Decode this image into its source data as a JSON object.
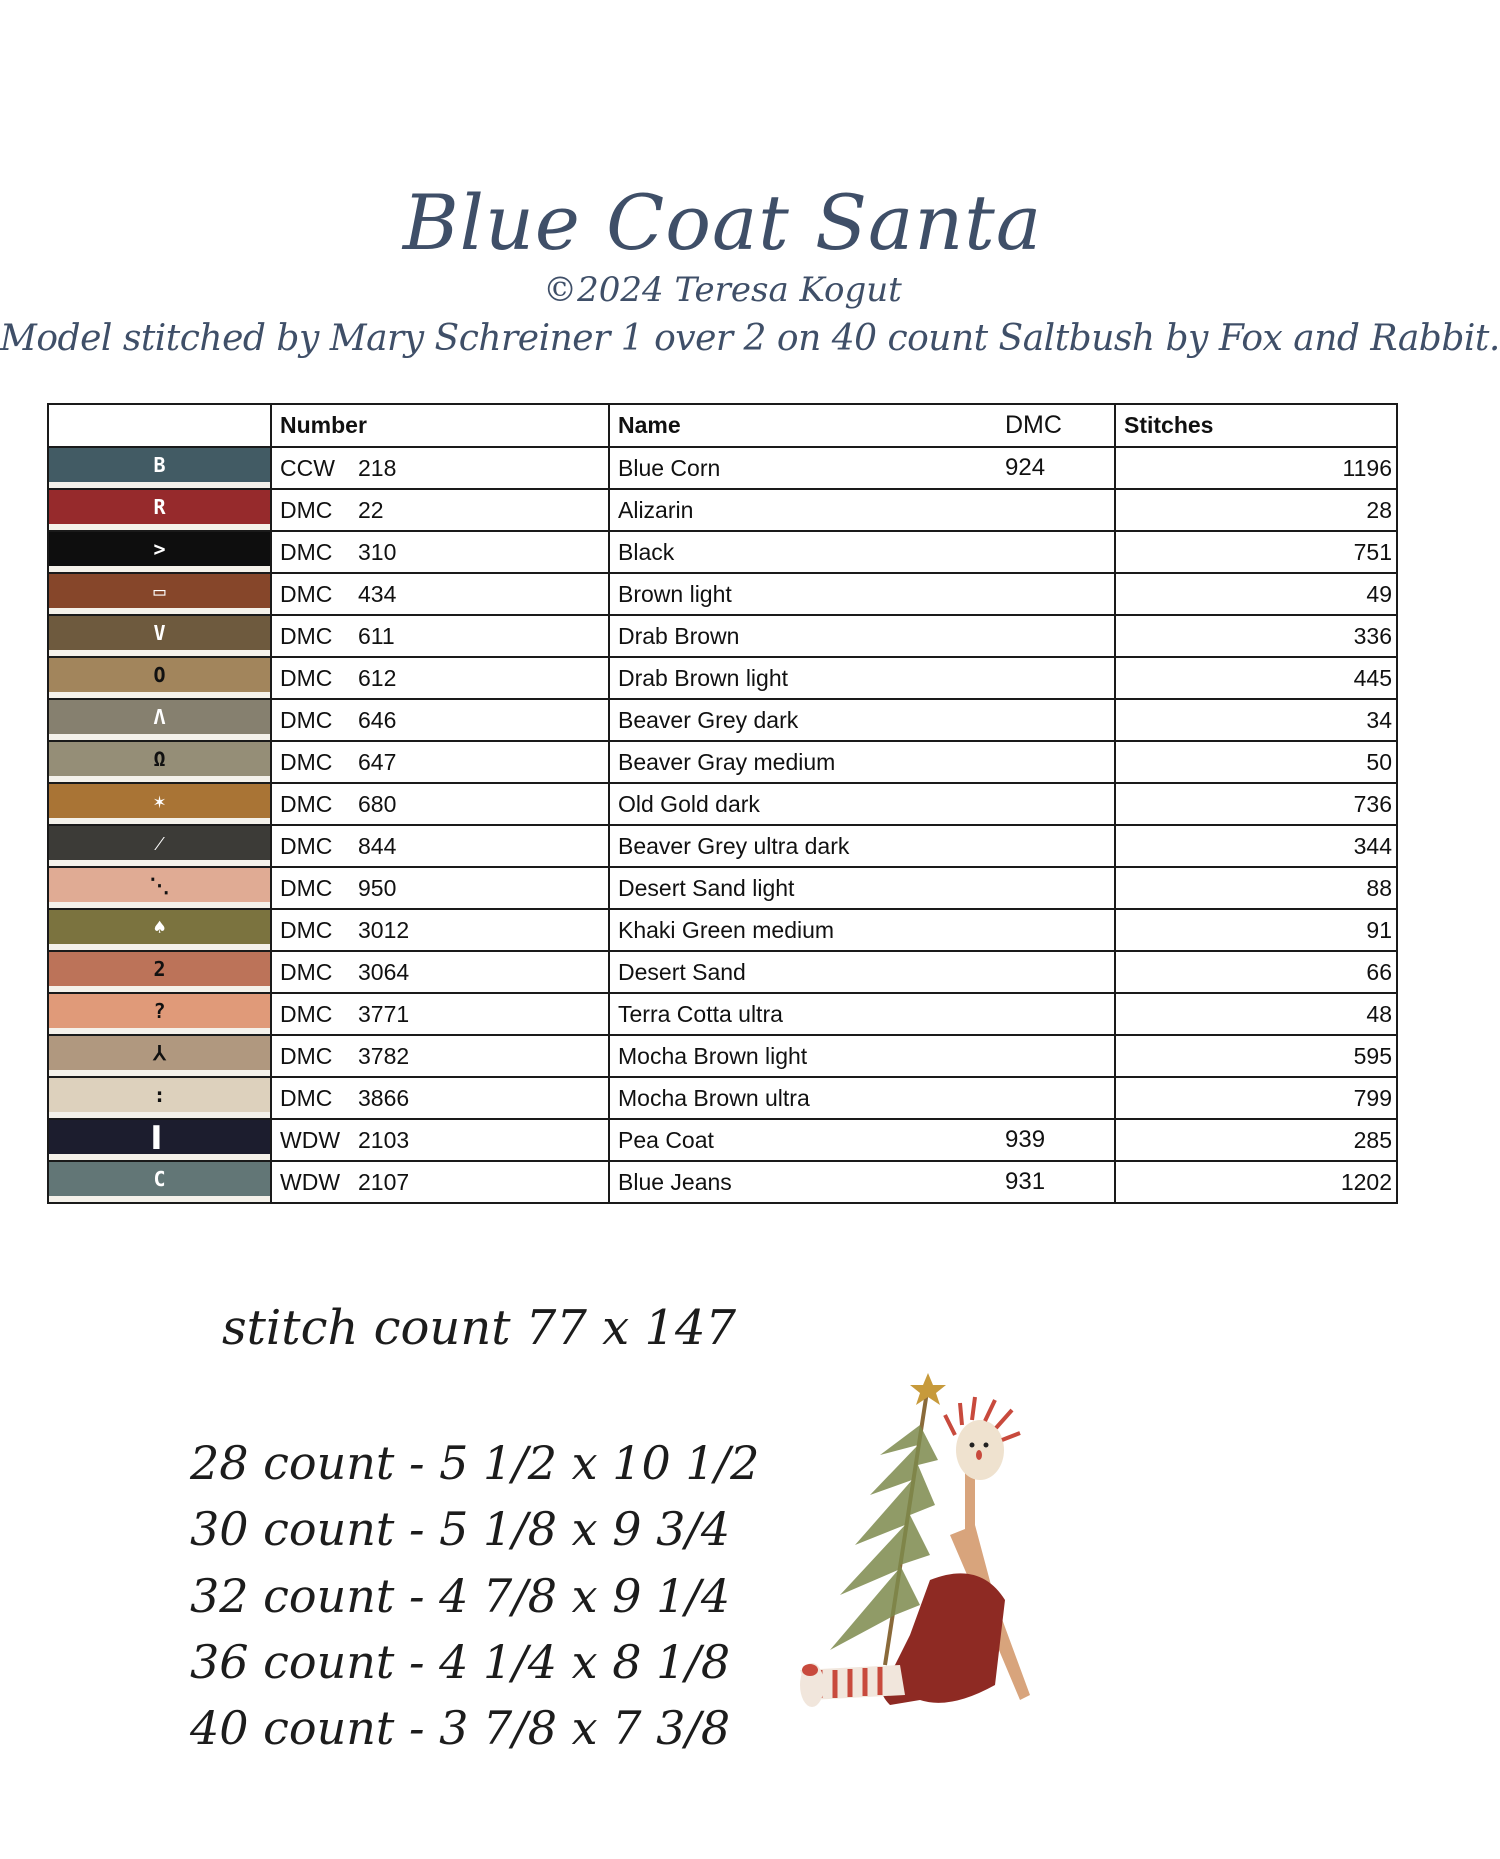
{
  "header": {
    "title": "Blue Coat Santa",
    "copyright": "©2024 Teresa Kogut",
    "model_note": "Model stitched by Mary Schreiner 1 over 2 on 40 count Saltbush by Fox and Rabbit."
  },
  "table": {
    "columns": [
      "",
      "Number",
      "Name",
      "DMC",
      "Stitches"
    ],
    "rows": [
      {
        "symbol": "B",
        "color": "#425b64",
        "symbol_color": "#ffffff",
        "brand": "CCW",
        "number": "218",
        "name": "Blue Corn",
        "dmc": "924",
        "stitches": "1196"
      },
      {
        "symbol": "R",
        "color": "#962a2c",
        "symbol_color": "#ffffff",
        "brand": "DMC",
        "number": "22",
        "name": "Alizarin",
        "dmc": "",
        "stitches": "28"
      },
      {
        "symbol": ">",
        "color": "#0e0e0e",
        "symbol_color": "#ffffff",
        "brand": "DMC",
        "number": "310",
        "name": "Black",
        "dmc": "",
        "stitches": "751"
      },
      {
        "symbol": "▭",
        "color": "#86462a",
        "symbol_color": "#ffffff",
        "brand": "DMC",
        "number": "434",
        "name": "Brown light",
        "dmc": "",
        "stitches": "49"
      },
      {
        "symbol": "V",
        "color": "#6e5a3e",
        "symbol_color": "#ffffff",
        "brand": "DMC",
        "number": "611",
        "name": "Drab Brown",
        "dmc": "",
        "stitches": "336"
      },
      {
        "symbol": "O",
        "color": "#a2855c",
        "symbol_color": "#111111",
        "brand": "DMC",
        "number": "612",
        "name": "Drab Brown light",
        "dmc": "",
        "stitches": "445"
      },
      {
        "symbol": "Λ",
        "color": "#86806f",
        "symbol_color": "#ffffff",
        "brand": "DMC",
        "number": "646",
        "name": "Beaver Grey dark",
        "dmc": "",
        "stitches": "34"
      },
      {
        "symbol": "Ω",
        "color": "#958e77",
        "symbol_color": "#111111",
        "brand": "DMC",
        "number": "647",
        "name": "Beaver Gray medium",
        "dmc": "",
        "stitches": "50"
      },
      {
        "symbol": "✶",
        "color": "#a97435",
        "symbol_color": "#ffffff",
        "brand": "DMC",
        "number": "680",
        "name": "Old Gold dark",
        "dmc": "",
        "stitches": "736"
      },
      {
        "symbol": "⁄",
        "color": "#3c3b37",
        "symbol_color": "#ffffff",
        "brand": "DMC",
        "number": "844",
        "name": "Beaver Grey ultra dark",
        "dmc": "",
        "stitches": "344"
      },
      {
        "symbol": "⋱",
        "color": "#e0ab94",
        "symbol_color": "#111111",
        "brand": "DMC",
        "number": "950",
        "name": "Desert Sand light",
        "dmc": "",
        "stitches": "88"
      },
      {
        "symbol": "♠",
        "color": "#7b733f",
        "symbol_color": "#ffffff",
        "brand": "DMC",
        "number": "3012",
        "name": "Khaki Green medium",
        "dmc": "",
        "stitches": "91"
      },
      {
        "symbol": "2",
        "color": "#bc7359",
        "symbol_color": "#111111",
        "brand": "DMC",
        "number": "3064",
        "name": "Desert Sand",
        "dmc": "",
        "stitches": "66"
      },
      {
        "symbol": "?",
        "color": "#e09a79",
        "symbol_color": "#111111",
        "brand": "DMC",
        "number": "3771",
        "name": "Terra Cotta ultra",
        "dmc": "",
        "stitches": "48"
      },
      {
        "symbol": "⅄",
        "color": "#b0987f",
        "symbol_color": "#111111",
        "brand": "DMC",
        "number": "3782",
        "name": "Mocha Brown light",
        "dmc": "",
        "stitches": "595"
      },
      {
        "symbol": ":",
        "color": "#ddd1bd",
        "symbol_color": "#111111",
        "brand": "DMC",
        "number": "3866",
        "name": "Mocha Brown ultra",
        "dmc": "",
        "stitches": "799"
      },
      {
        "symbol": "▌",
        "color": "#1c1d2e",
        "symbol_color": "#ffffff",
        "brand": "WDW",
        "number": "2103",
        "name": "Pea Coat",
        "dmc": "939",
        "stitches": "285"
      },
      {
        "symbol": "C",
        "color": "#627676",
        "symbol_color": "#ffffff",
        "brand": "WDW",
        "number": "2107",
        "name": "Blue Jeans",
        "dmc": "931",
        "stitches": "1202"
      }
    ]
  },
  "stitch_info": {
    "stitch_count": "stitch count 77 x 147",
    "sizes": [
      "28 count - 5 1/2 x 10 1/2",
      "30 count - 5 1/8 x 9 3/4",
      "32 count - 4 7/8 x 9 1/4",
      "36 count - 4 1/4 x 8 1/8",
      "40 count - 3 7/8 x 7 3/8"
    ]
  },
  "colors": {
    "title": "#3f4f68",
    "table_border": "#1a1a1a"
  }
}
